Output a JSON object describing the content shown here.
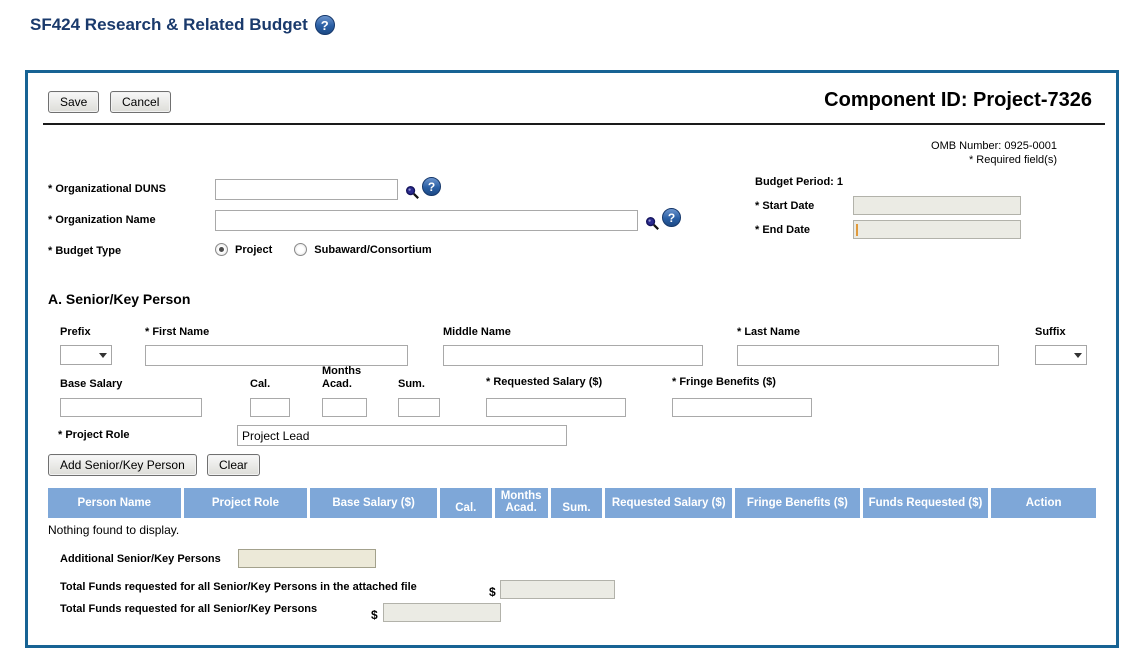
{
  "page": {
    "title": "SF424 Research & Related Budget",
    "help_glyph": "?"
  },
  "toolbar": {
    "save": "Save",
    "cancel": "Cancel"
  },
  "header": {
    "component_id": "Component ID: Project-7326",
    "omb": "OMB Number: 0925-0001",
    "required": "* Required field(s)"
  },
  "org": {
    "duns_label": "* Organizational DUNS",
    "duns_value": "",
    "name_label": "* Organization Name",
    "name_value": "",
    "budget_type_label": "* Budget Type",
    "budget_type_options": [
      "Project",
      "Subaward/Consortium"
    ],
    "budget_type_selected": "Project",
    "budget_period": "Budget Period: 1",
    "start_date_label": "* Start Date",
    "start_date_value": "",
    "end_date_label": "* End Date",
    "end_date_value": ""
  },
  "senior": {
    "heading": "A. Senior/Key Person",
    "prefix_label": "Prefix",
    "prefix_value": "",
    "first_label": "* First Name",
    "first_value": "",
    "middle_label": "Middle Name",
    "middle_value": "",
    "last_label": "* Last Name",
    "last_value": "",
    "suffix_label": "Suffix",
    "suffix_value": "",
    "base_salary_label": "Base Salary",
    "base_salary_value": "",
    "cal_label": "Cal.",
    "cal_value": "",
    "months_label": "Months",
    "acad_label": "Acad.",
    "acad_value": "",
    "sum_label": "Sum.",
    "sum_value": "",
    "requested_salary_label": "* Requested Salary ($)",
    "requested_salary_value": "",
    "fringe_label": "* Fringe Benefits ($)",
    "fringe_value": "",
    "project_role_label": "* Project Role",
    "project_role_value": "Project Lead",
    "add_button": "Add Senior/Key Person",
    "clear_button": "Clear"
  },
  "table": {
    "headers": [
      "Person Name",
      "Project Role",
      "Base Salary ($)",
      "Cal.",
      "Months Acad.",
      "Sum.",
      "Requested Salary ($)",
      "Fringe Benefits ($)",
      "Funds Requested ($)",
      "Action"
    ],
    "empty": "Nothing found to display."
  },
  "totals": {
    "additional_label": "Additional Senior/Key Persons",
    "additional_value": "",
    "attached_label": "Total Funds requested for all Senior/Key Persons in the attached file",
    "attached_value": "",
    "all_label": "Total Funds requested for all Senior/Key Persons",
    "all_value": "",
    "currency": "$"
  },
  "colors": {
    "title_navy": "#1a3a6c",
    "panel_border": "#176394",
    "table_header_bg": "#7ea7d8",
    "help_icon_blue": "#2a5fa5"
  }
}
